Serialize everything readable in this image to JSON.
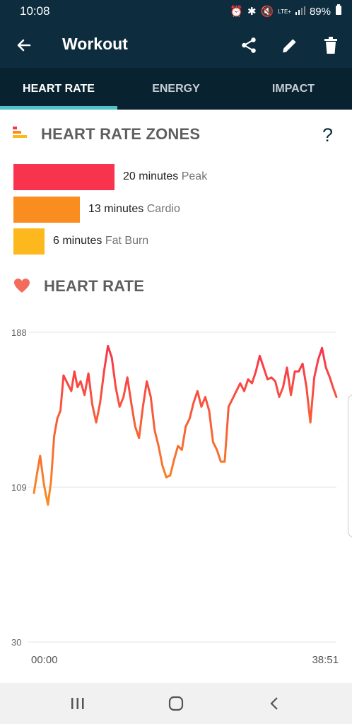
{
  "status": {
    "time": "10:08",
    "battery": "89%",
    "network": "LTE+"
  },
  "appbar": {
    "title": "Workout"
  },
  "tabs": [
    {
      "label": "HEART RATE",
      "active": true
    },
    {
      "label": "ENERGY",
      "active": false
    },
    {
      "label": "IMPACT",
      "active": false
    }
  ],
  "zones": {
    "title": "HEART RATE ZONES",
    "help": "?",
    "items": [
      {
        "value": "20 minutes",
        "name": "Peak",
        "minutes": 20,
        "color": "#f8334d"
      },
      {
        "value": "13 minutes",
        "name": "Cardio",
        "minutes": 13,
        "color": "#f98d1f"
      },
      {
        "value": "6 minutes",
        "name": "Fat Burn",
        "minutes": 6,
        "color": "#fdb81e"
      }
    ]
  },
  "heart_rate": {
    "title": "HEART RATE"
  },
  "colors": {
    "header": "#0d2d3e",
    "tabbar": "#082230",
    "accent": "#4fc3c8",
    "peak": "#f8334d",
    "cardio": "#f98d1f",
    "fatburn": "#fdb81e",
    "heart": "#f26b5b"
  },
  "icons": {
    "back": "arrow-left-icon",
    "share": "share-icon",
    "edit": "pencil-icon",
    "delete": "trash-icon",
    "zones": "zones-bars-icon",
    "heart": "heart-icon"
  },
  "chart_data": {
    "type": "line",
    "title": "",
    "xlabel": "",
    "ylabel": "",
    "x_tick_labels": [
      "00:00",
      "38:51"
    ],
    "y_tick_labels": [
      "188",
      "109",
      "30"
    ],
    "y_ticks": [
      188,
      109,
      30
    ],
    "ylim": [
      30,
      188
    ],
    "x_unit": "minutes",
    "xlim": [
      0,
      38.85
    ],
    "grid": true,
    "gradient": [
      "#f98d1f",
      "#f8334d"
    ],
    "series": [
      {
        "name": "",
        "x": [
          0,
          0.4,
          0.8,
          1.3,
          1.8,
          2.2,
          2.6,
          3.0,
          3.4,
          3.8,
          4.3,
          4.8,
          5.2,
          5.6,
          6.0,
          6.5,
          7.0,
          7.5,
          8.0,
          8.5,
          9.0,
          9.5,
          10.0,
          10.5,
          11.0,
          11.5,
          12.0,
          12.5,
          13.0,
          13.5,
          14.0,
          14.5,
          15.0,
          15.5,
          16.0,
          16.5,
          17.0,
          17.5,
          18.0,
          18.5,
          19.0,
          19.5,
          20.0,
          20.5,
          21.0,
          21.5,
          22.0,
          22.5,
          23.0,
          23.5,
          24.0,
          24.5,
          25.0,
          25.5,
          26.0,
          26.5,
          27.0,
          27.5,
          28.0,
          28.5,
          29.0,
          29.5,
          30.0,
          30.5,
          31.0,
          31.5,
          32.0,
          32.5,
          33.0,
          33.5,
          34.0,
          34.5,
          35.0,
          35.5,
          36.0,
          36.5,
          37.0,
          37.5,
          38.0,
          38.4,
          38.85
        ],
        "values": [
          106,
          116,
          125,
          110,
          100,
          112,
          135,
          144,
          148,
          166,
          162,
          158,
          168,
          160,
          163,
          156,
          167,
          151,
          142,
          152,
          168,
          181,
          175,
          160,
          150,
          155,
          165,
          152,
          140,
          134,
          150,
          163,
          155,
          138,
          130,
          120,
          114,
          115,
          123,
          130,
          128,
          140,
          144,
          152,
          158,
          150,
          155,
          148,
          132,
          128,
          122,
          122,
          150,
          154,
          158,
          162,
          158,
          164,
          162,
          168,
          176,
          170,
          164,
          165,
          163,
          155,
          160,
          170,
          156,
          168,
          168,
          172,
          160,
          142,
          165,
          174,
          180,
          170,
          165,
          160,
          155
        ]
      }
    ]
  }
}
